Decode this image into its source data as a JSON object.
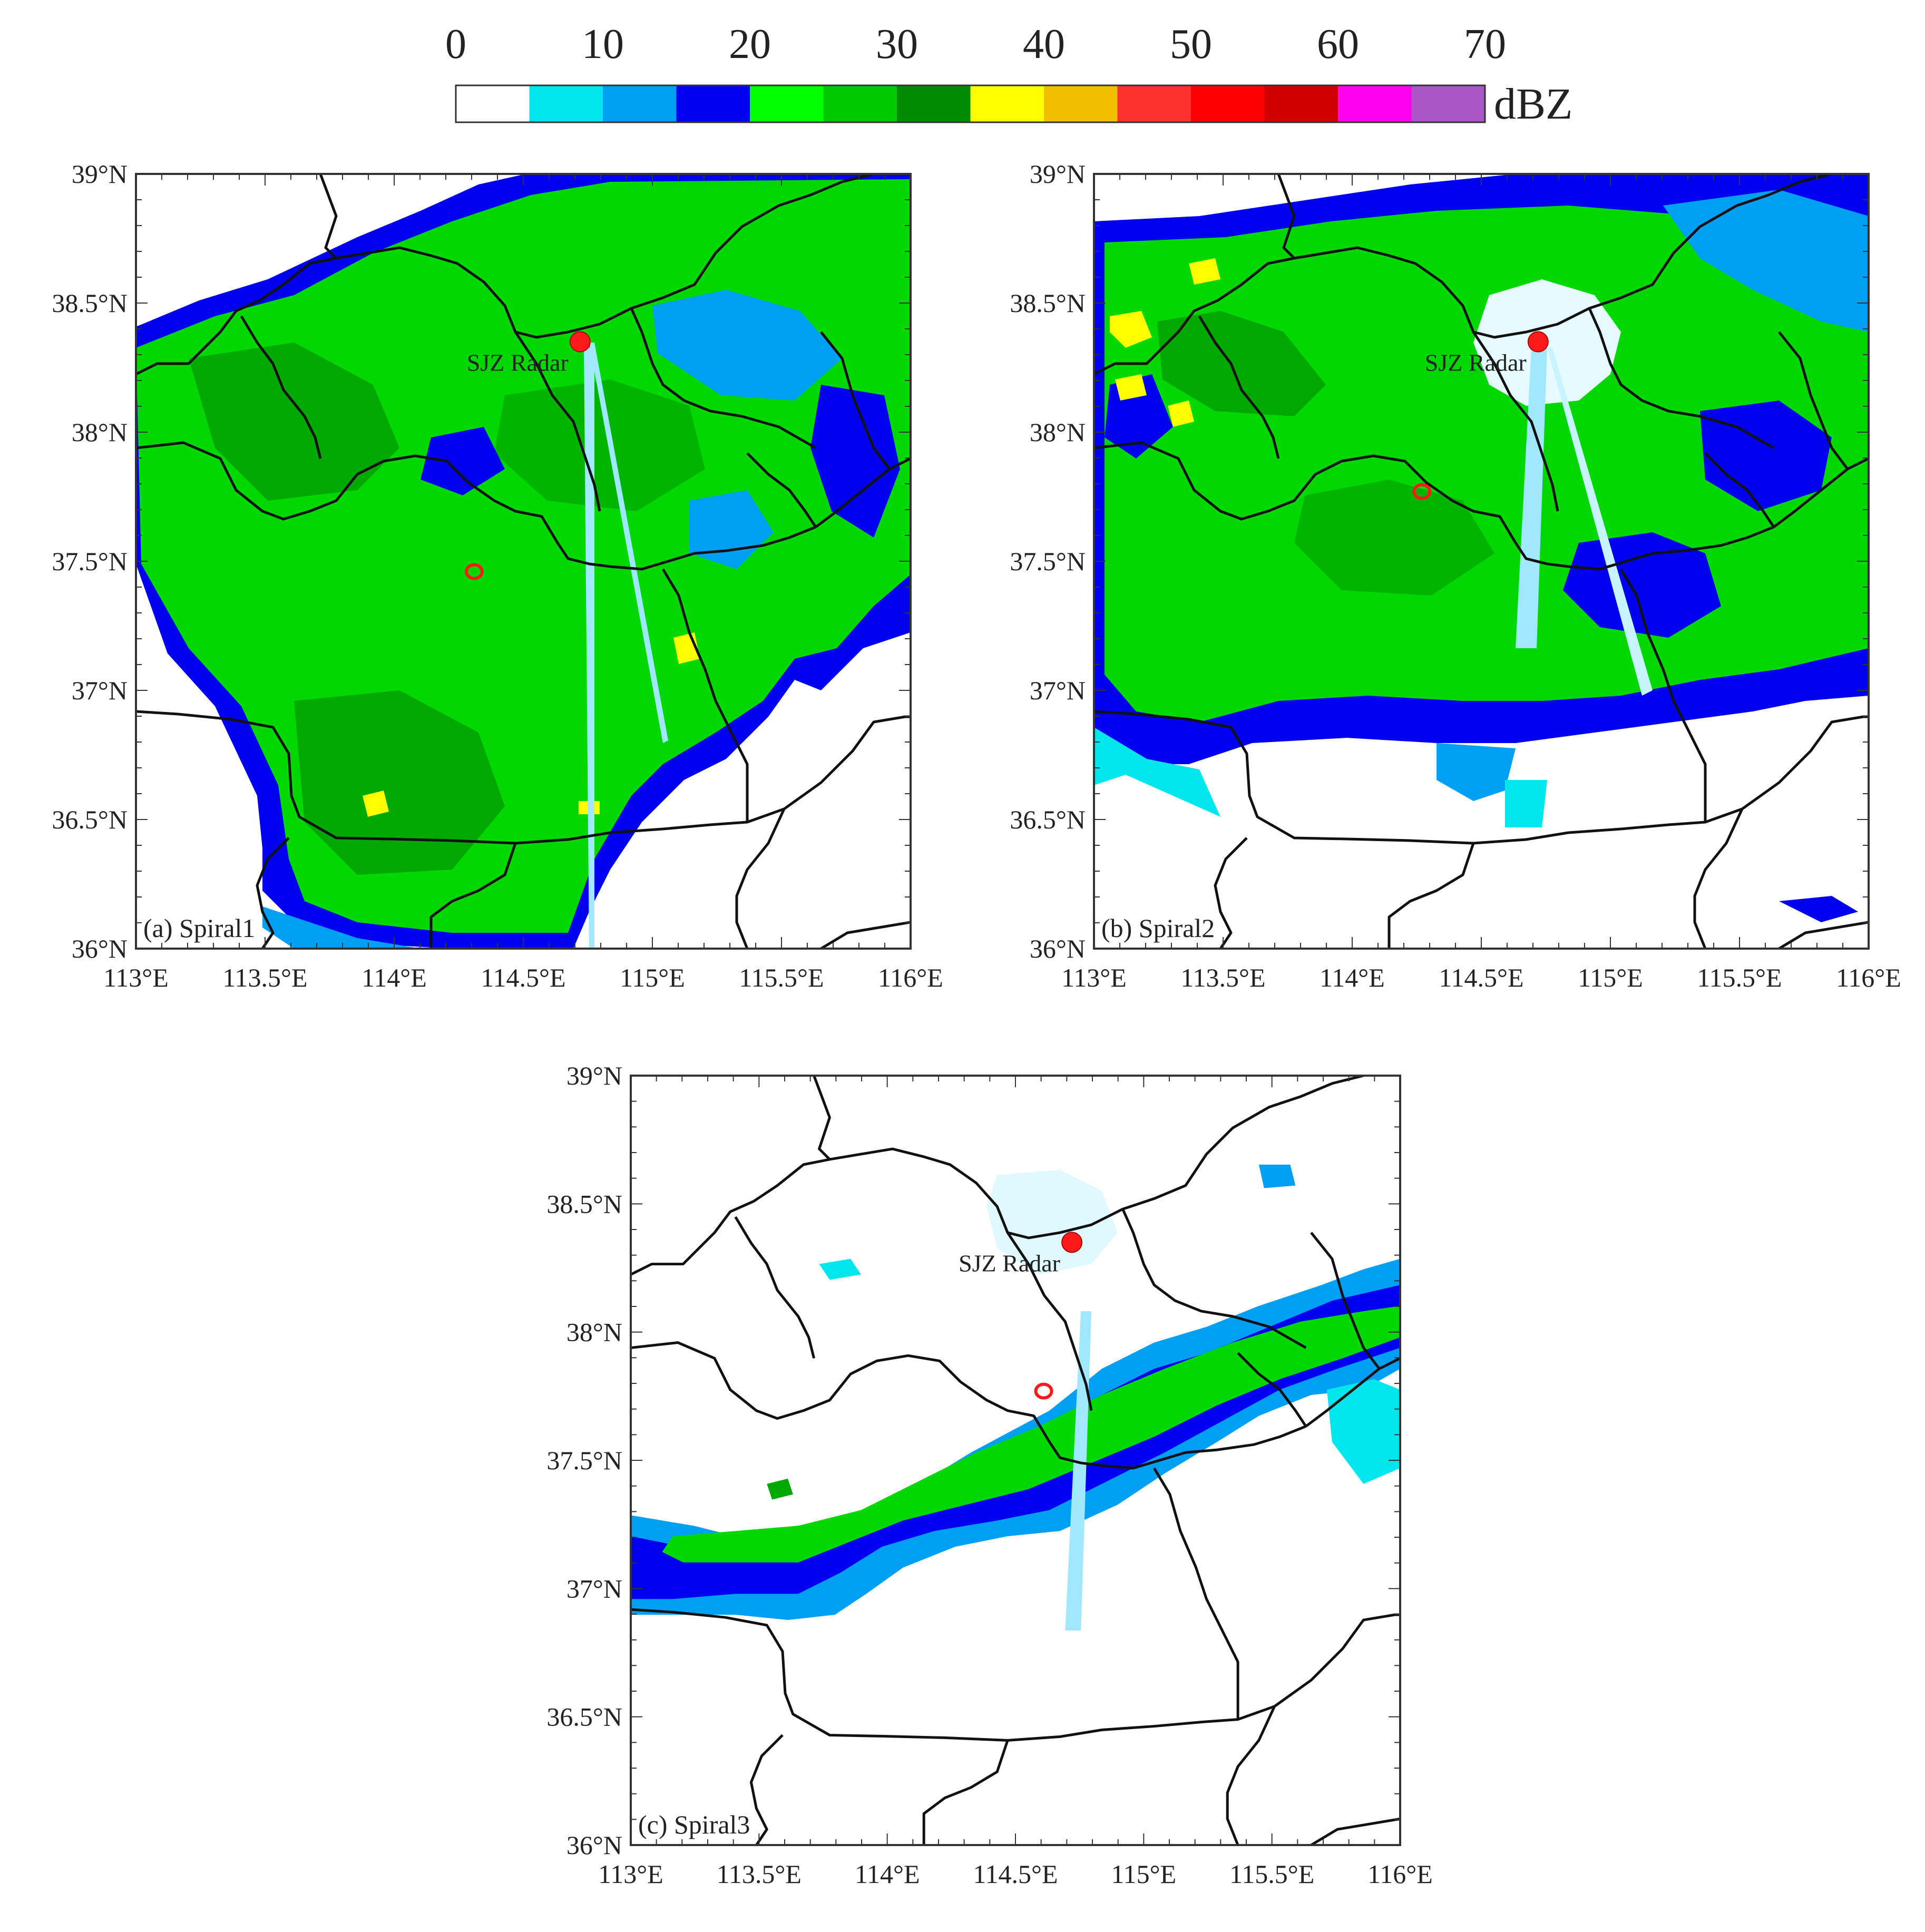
{
  "colorbar": {
    "unit": "dBZ",
    "tick_labels": [
      "0",
      "10",
      "20",
      "30",
      "40",
      "50",
      "60",
      "70"
    ],
    "colors": [
      "#ffffff",
      "#00e6ef",
      "#009ff6",
      "#0000f0",
      "#00ff00",
      "#00c800",
      "#008c00",
      "#ffff00",
      "#f0bf00",
      "#ff3030",
      "#ff0000",
      "#d00000",
      "#ff00f0",
      "#a855c8"
    ]
  },
  "map": {
    "x_ticks": [
      "113°E",
      "113.5°E",
      "114°E",
      "114.5°E",
      "115°E",
      "115.5°E",
      "116°E"
    ],
    "y_ticks": [
      "36°N",
      "36.5°N",
      "37°N",
      "37.5°N",
      "38°N",
      "38.5°N",
      "39°N"
    ],
    "lon_range": [
      113,
      116
    ],
    "lat_range": [
      36,
      39
    ],
    "radar_label": "SJZ Radar",
    "radar_location": {
      "lon": 114.72,
      "lat": 38.35
    },
    "marker_color": "#ff1a1a"
  },
  "panels": [
    {
      "label": "(a) Spiral1",
      "target": {
        "lon": 114.31,
        "lat": 37.46
      }
    },
    {
      "label": "(b) Spiral2",
      "target": {
        "lon": 114.27,
        "lat": 37.77
      }
    },
    {
      "label": "(c) Spiral3",
      "target": {
        "lon": 114.61,
        "lat": 37.77
      }
    }
  ]
}
